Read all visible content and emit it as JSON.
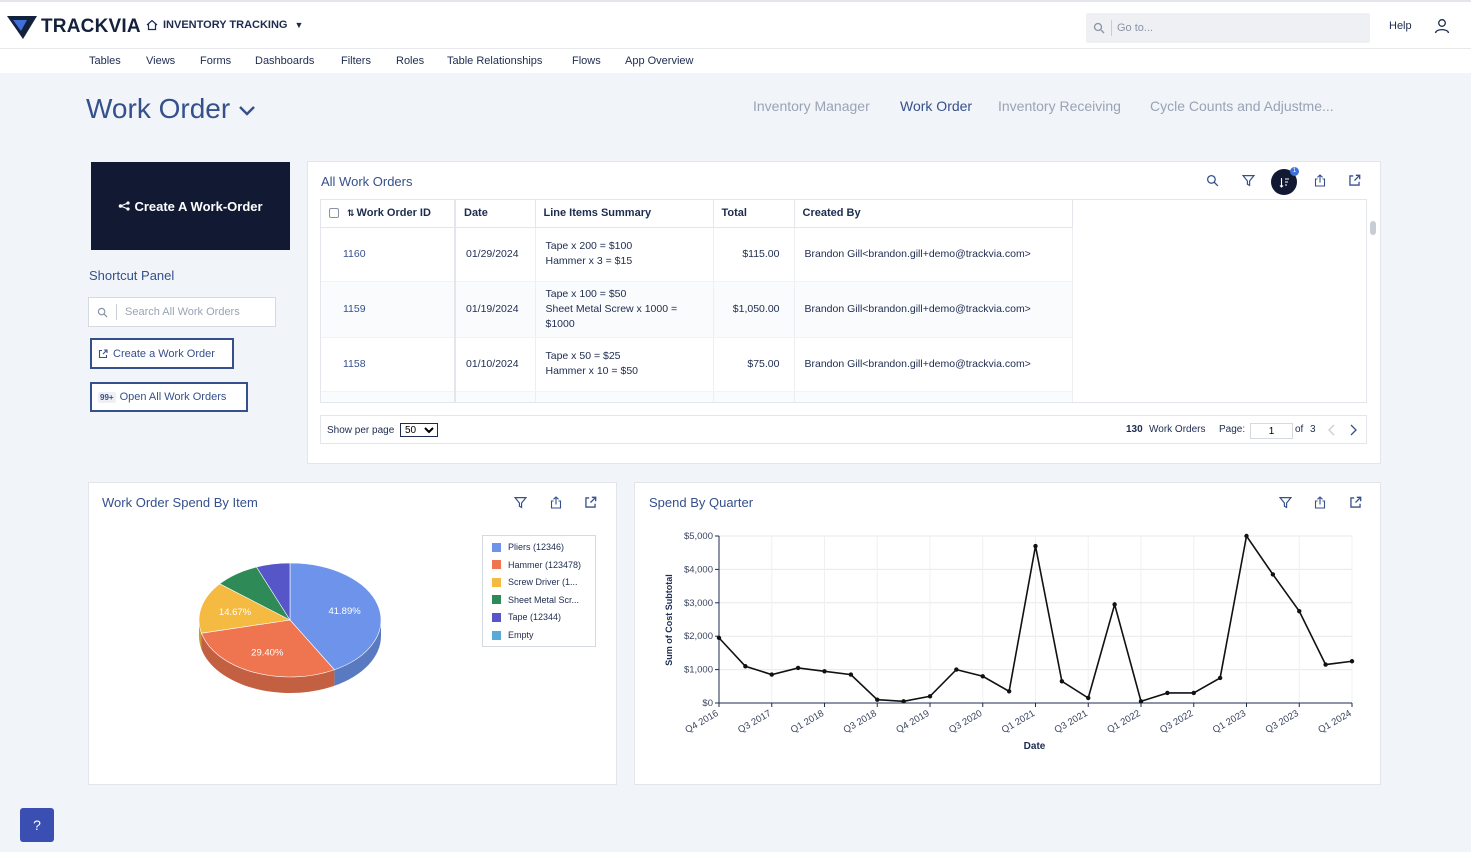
{
  "brand": {
    "logo_text": "TRACKVIA"
  },
  "app": {
    "name": "INVENTORY TRACKING"
  },
  "search": {
    "placeholder": "Go to..."
  },
  "header": {
    "help_label": "Help"
  },
  "nav": {
    "items": [
      "Tables",
      "Views",
      "Forms",
      "Dashboards",
      "Filters",
      "Roles",
      "Table Relationships",
      "Flows",
      "App Overview"
    ]
  },
  "page": {
    "title": "Work Order"
  },
  "dashboard_tabs": [
    {
      "label": "Inventory Manager",
      "active": false
    },
    {
      "label": "Work Order",
      "active": true
    },
    {
      "label": "Inventory Receiving",
      "active": false
    },
    {
      "label": "Cycle Counts and Adjustme...",
      "active": false
    }
  ],
  "create_card": {
    "label": "Create A Work-Order"
  },
  "shortcut_panel": {
    "title": "Shortcut Panel",
    "search_placeholder": "Search All Work Orders",
    "create_label": "Create a Work Order",
    "open_all_label": "Open All Work Orders",
    "open_all_badge": "99+"
  },
  "work_orders": {
    "title": "All Work Orders",
    "sort_badge": "1",
    "columns": [
      "Work Order ID",
      "Date",
      "Line Items Summary",
      "Total",
      "Created By"
    ],
    "rows": [
      {
        "id": "1160",
        "date": "01/29/2024",
        "summary": [
          "Tape x 200 = $100",
          "Hammer x 3 = $15"
        ],
        "total": "$115.00",
        "created_by": "Brandon Gill<brandon.gill+demo@trackvia.com>"
      },
      {
        "id": "1159",
        "date": "01/19/2024",
        "summary": [
          "Tape x 100 = $50",
          "Sheet Metal Screw x 1000 =",
          "$1000"
        ],
        "total": "$1,050.00",
        "created_by": "Brandon Gill<brandon.gill+demo@trackvia.com>"
      },
      {
        "id": "1158",
        "date": "01/10/2024",
        "summary": [
          "Tape x 50 = $25",
          "Hammer x 10 = $50"
        ],
        "total": "$75.00",
        "created_by": "Brandon Gill<brandon.gill+demo@trackvia.com>"
      }
    ],
    "pager": {
      "per_page_label": "Show per page",
      "per_page": "50",
      "count": "130",
      "count_label": "Work Orders",
      "page_label": "Page:",
      "page": "1",
      "of_label": "of",
      "total_pages": "3"
    }
  },
  "spend_by_item": {
    "title": "Work Order Spend By Item",
    "chart_data": {
      "type": "pie",
      "labels": [
        "Pliers (12346)",
        "Hammer (123478)",
        "Screw Driver (1...",
        "Sheet Metal Scr...",
        "Tape (12344)",
        "Empty"
      ],
      "values": [
        41.89,
        29.4,
        14.67,
        8.04,
        6.0,
        0
      ],
      "data_labels": [
        "41.89%",
        "29.40%",
        "14.67%",
        "",
        "",
        ""
      ],
      "colors": [
        "#6d93eb",
        "#ef7550",
        "#f5ba42",
        "#2e8b57",
        "#5656c8",
        "#5aa9d6"
      ],
      "legend": "right"
    }
  },
  "spend_by_quarter": {
    "title": "Spend By Quarter",
    "chart_data": {
      "type": "line",
      "xlabel": "Date",
      "ylabel": "Sum of Cost Subtotal",
      "ylim": [
        0,
        5000
      ],
      "yticks": [
        "$0",
        "$1,000",
        "$2,000",
        "$3,000",
        "$4,000",
        "$5,000"
      ],
      "tick_labels": [
        "Q4 2016",
        "Q3 2017",
        "Q1 2018",
        "Q3 2018",
        "Q4 2019",
        "Q3 2020",
        "Q1 2021",
        "Q3 2021",
        "Q1 2022",
        "Q3 2022",
        "Q1 2023",
        "Q3 2023",
        "Q1 2024"
      ],
      "values": [
        1950,
        1100,
        850,
        1050,
        950,
        850,
        100,
        50,
        200,
        1000,
        800,
        350,
        4700,
        650,
        150,
        2950,
        50,
        300,
        300,
        750,
        5000,
        3850,
        2750,
        1150,
        1250
      ],
      "grid": true
    }
  },
  "help_button": {
    "label": "?"
  }
}
